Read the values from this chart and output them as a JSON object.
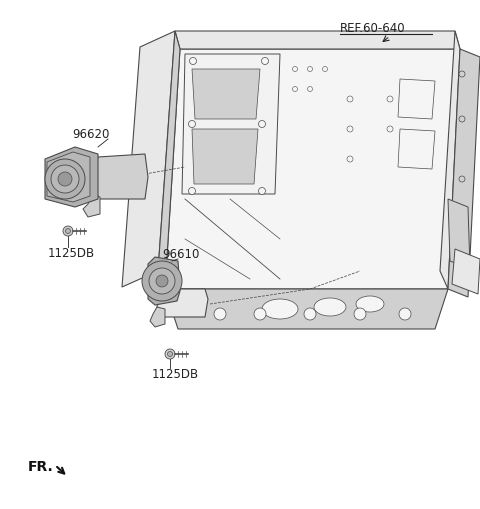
{
  "bg_color": "#ffffff",
  "lc": "#4a4a4a",
  "lc_light": "#888888",
  "fill_light": "#e8e8e8",
  "fill_mid": "#d0d0d0",
  "fill_dark": "#b8b8b8",
  "fill_horn": "#b0b0b0",
  "text_color": "#222222",
  "ref_label": "REF.60-640",
  "label_96620": "96620",
  "label_96610": "96610",
  "label_1125DB_1": "1125DB",
  "label_1125DB_2": "1125DB",
  "fr_label": "FR.",
  "font_size": 8.5
}
